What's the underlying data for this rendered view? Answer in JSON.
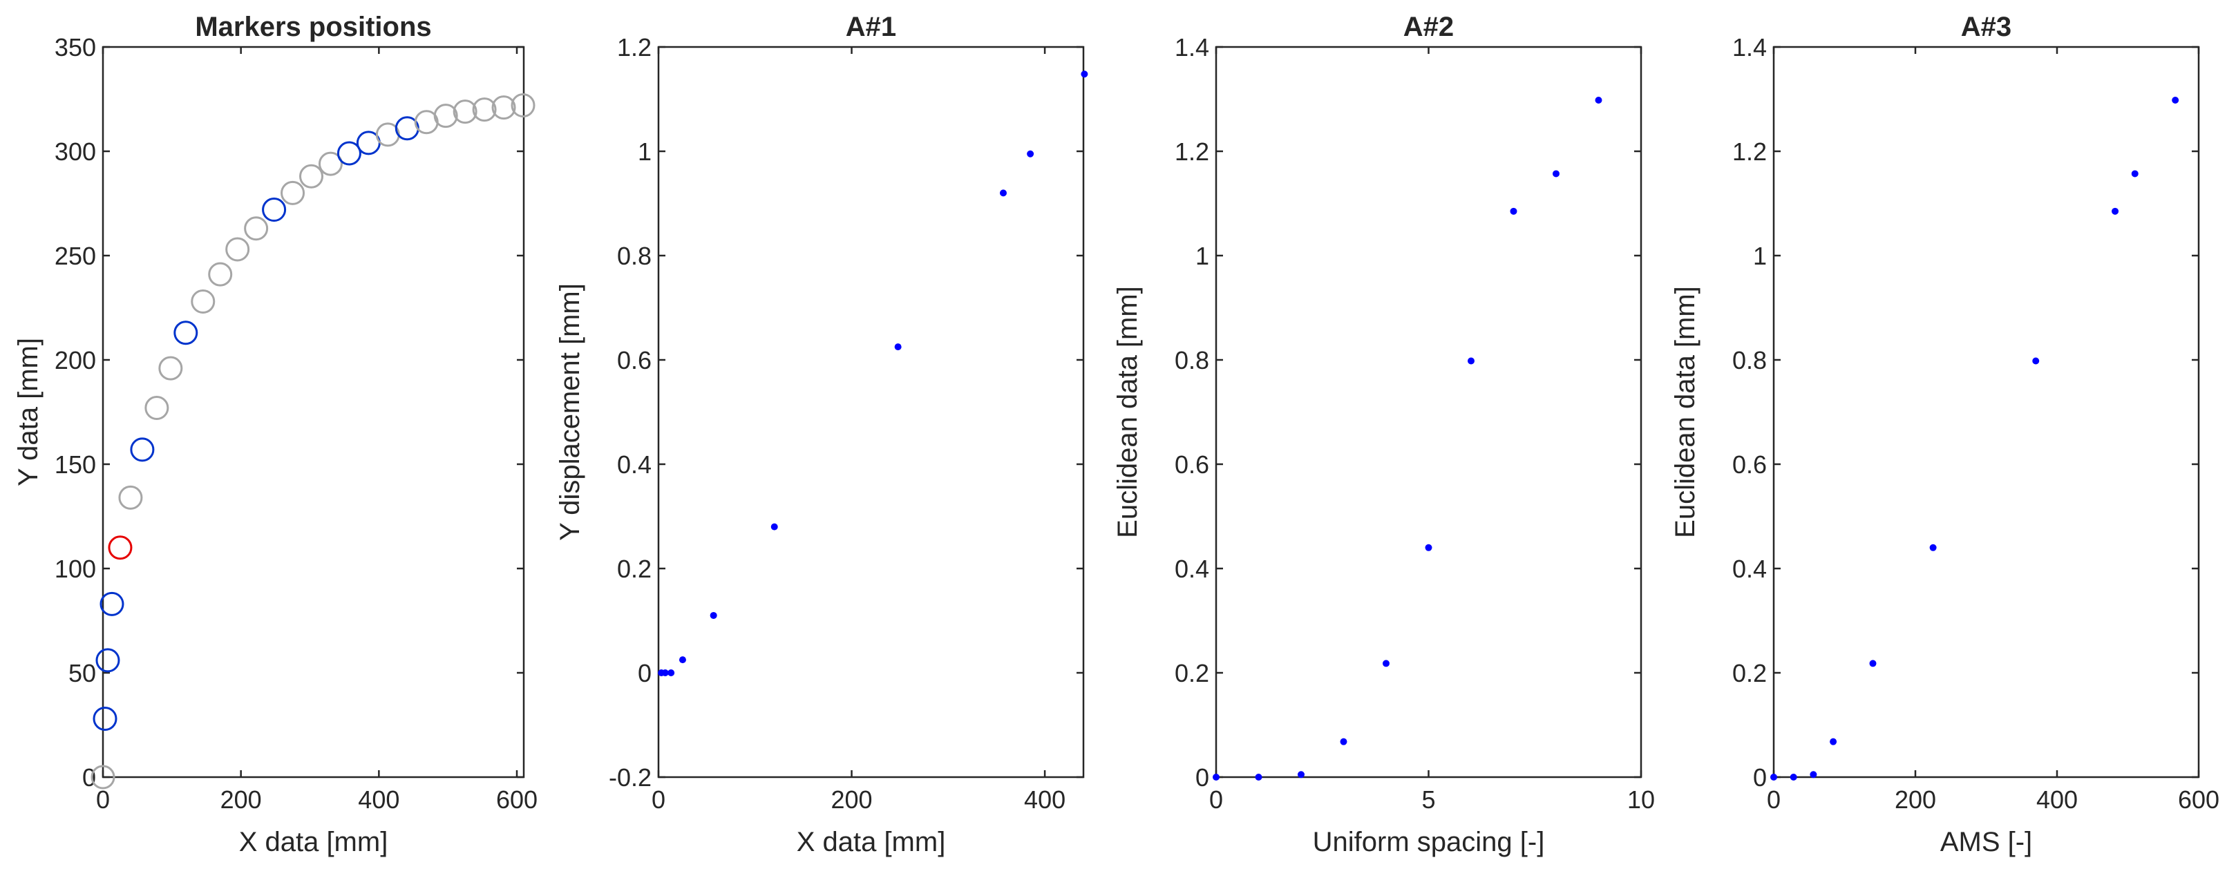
{
  "chart_data": [
    {
      "type": "scatter",
      "title": "Markers positions",
      "xlabel": "X data [mm]",
      "ylabel": "Y data [mm]",
      "xlim": [
        0,
        610
      ],
      "ylim": [
        0,
        350
      ],
      "xticks": [
        0,
        200,
        400,
        600
      ],
      "yticks": [
        0,
        50,
        100,
        150,
        200,
        250,
        300,
        350
      ],
      "grid": false,
      "marker": "open-circle",
      "colors": {
        "gray": "#a6a6a6",
        "blue": "#0033cc",
        "red": "#e60000"
      },
      "points": [
        {
          "x": 0,
          "y": 0,
          "color": "gray"
        },
        {
          "x": 3,
          "y": 28,
          "color": "blue"
        },
        {
          "x": 7,
          "y": 56,
          "color": "blue"
        },
        {
          "x": 13,
          "y": 83,
          "color": "blue"
        },
        {
          "x": 25,
          "y": 110,
          "color": "red"
        },
        {
          "x": 40,
          "y": 134,
          "color": "gray"
        },
        {
          "x": 57,
          "y": 157,
          "color": "blue"
        },
        {
          "x": 78,
          "y": 177,
          "color": "gray"
        },
        {
          "x": 98,
          "y": 196,
          "color": "gray"
        },
        {
          "x": 120,
          "y": 213,
          "color": "blue"
        },
        {
          "x": 145,
          "y": 228,
          "color": "gray"
        },
        {
          "x": 170,
          "y": 241,
          "color": "gray"
        },
        {
          "x": 195,
          "y": 253,
          "color": "gray"
        },
        {
          "x": 222,
          "y": 263,
          "color": "gray"
        },
        {
          "x": 248,
          "y": 272,
          "color": "blue"
        },
        {
          "x": 275,
          "y": 280,
          "color": "gray"
        },
        {
          "x": 302,
          "y": 288,
          "color": "gray"
        },
        {
          "x": 330,
          "y": 294,
          "color": "gray"
        },
        {
          "x": 357,
          "y": 299,
          "color": "blue"
        },
        {
          "x": 385,
          "y": 304,
          "color": "blue"
        },
        {
          "x": 413,
          "y": 308,
          "color": "gray"
        },
        {
          "x": 441,
          "y": 311,
          "color": "blue"
        },
        {
          "x": 469,
          "y": 314,
          "color": "gray"
        },
        {
          "x": 497,
          "y": 317,
          "color": "gray"
        },
        {
          "x": 525,
          "y": 319,
          "color": "gray"
        },
        {
          "x": 553,
          "y": 320,
          "color": "gray"
        },
        {
          "x": 581,
          "y": 321,
          "color": "gray"
        },
        {
          "x": 609,
          "y": 322,
          "color": "gray"
        }
      ]
    },
    {
      "type": "scatter",
      "title": "A#1",
      "xlabel": "X data [mm]",
      "ylabel": "Y displacement  [mm]",
      "xlim": [
        0,
        440
      ],
      "ylim": [
        -0.2,
        1.2
      ],
      "xticks": [
        0,
        200,
        400
      ],
      "yticks": [
        -0.2,
        0,
        0.2,
        0.4,
        0.6,
        0.8,
        1,
        1.2
      ],
      "ytick_labels": [
        "-0.2",
        "0",
        "0.2",
        "0.4",
        "0.6",
        "0.8",
        "1",
        "1.2"
      ],
      "grid": false,
      "marker": "dot",
      "color": "#0000ff",
      "x": [
        3,
        7,
        13,
        25,
        57,
        120,
        248,
        357,
        385,
        441
      ],
      "y": [
        0,
        0,
        0,
        0.025,
        0.11,
        0.28,
        0.625,
        0.92,
        0.995,
        1.148
      ]
    },
    {
      "type": "scatter",
      "title": "A#2",
      "xlabel": "Uniform spacing [-]",
      "ylabel": "Euclidean data  [mm]",
      "xlim": [
        0,
        10
      ],
      "ylim": [
        0,
        1.4
      ],
      "xticks": [
        0,
        5,
        10
      ],
      "yticks": [
        0,
        0.2,
        0.4,
        0.6,
        0.8,
        1,
        1.2,
        1.4
      ],
      "ytick_labels": [
        "0",
        "0.2",
        "0.4",
        "0.6",
        "0.8",
        "1",
        "1.2",
        "1.4"
      ],
      "grid": false,
      "marker": "dot",
      "color": "#0000ff",
      "x": [
        0,
        1,
        2,
        3,
        4,
        5,
        6,
        7,
        8,
        9
      ],
      "y": [
        0,
        0,
        0.005,
        0.068,
        0.218,
        0.44,
        0.798,
        1.085,
        1.157,
        1.298
      ]
    },
    {
      "type": "scatter",
      "title": "A#3",
      "xlabel": "AMS [-]",
      "ylabel": "Euclidean data  [mm]",
      "xlim": [
        0,
        600
      ],
      "ylim": [
        0,
        1.4
      ],
      "xticks": [
        0,
        200,
        400,
        600
      ],
      "yticks": [
        0,
        0.2,
        0.4,
        0.6,
        0.8,
        1,
        1.2,
        1.4
      ],
      "ytick_labels": [
        "0",
        "0.2",
        "0.4",
        "0.6",
        "0.8",
        "1",
        "1.2",
        "1.4"
      ],
      "grid": false,
      "marker": "dot",
      "color": "#0000ff",
      "x": [
        0,
        28,
        56,
        84,
        140,
        225,
        370,
        482,
        510,
        567
      ],
      "y": [
        0,
        0,
        0.005,
        0.068,
        0.218,
        0.44,
        0.798,
        1.085,
        1.157,
        1.298
      ]
    }
  ]
}
